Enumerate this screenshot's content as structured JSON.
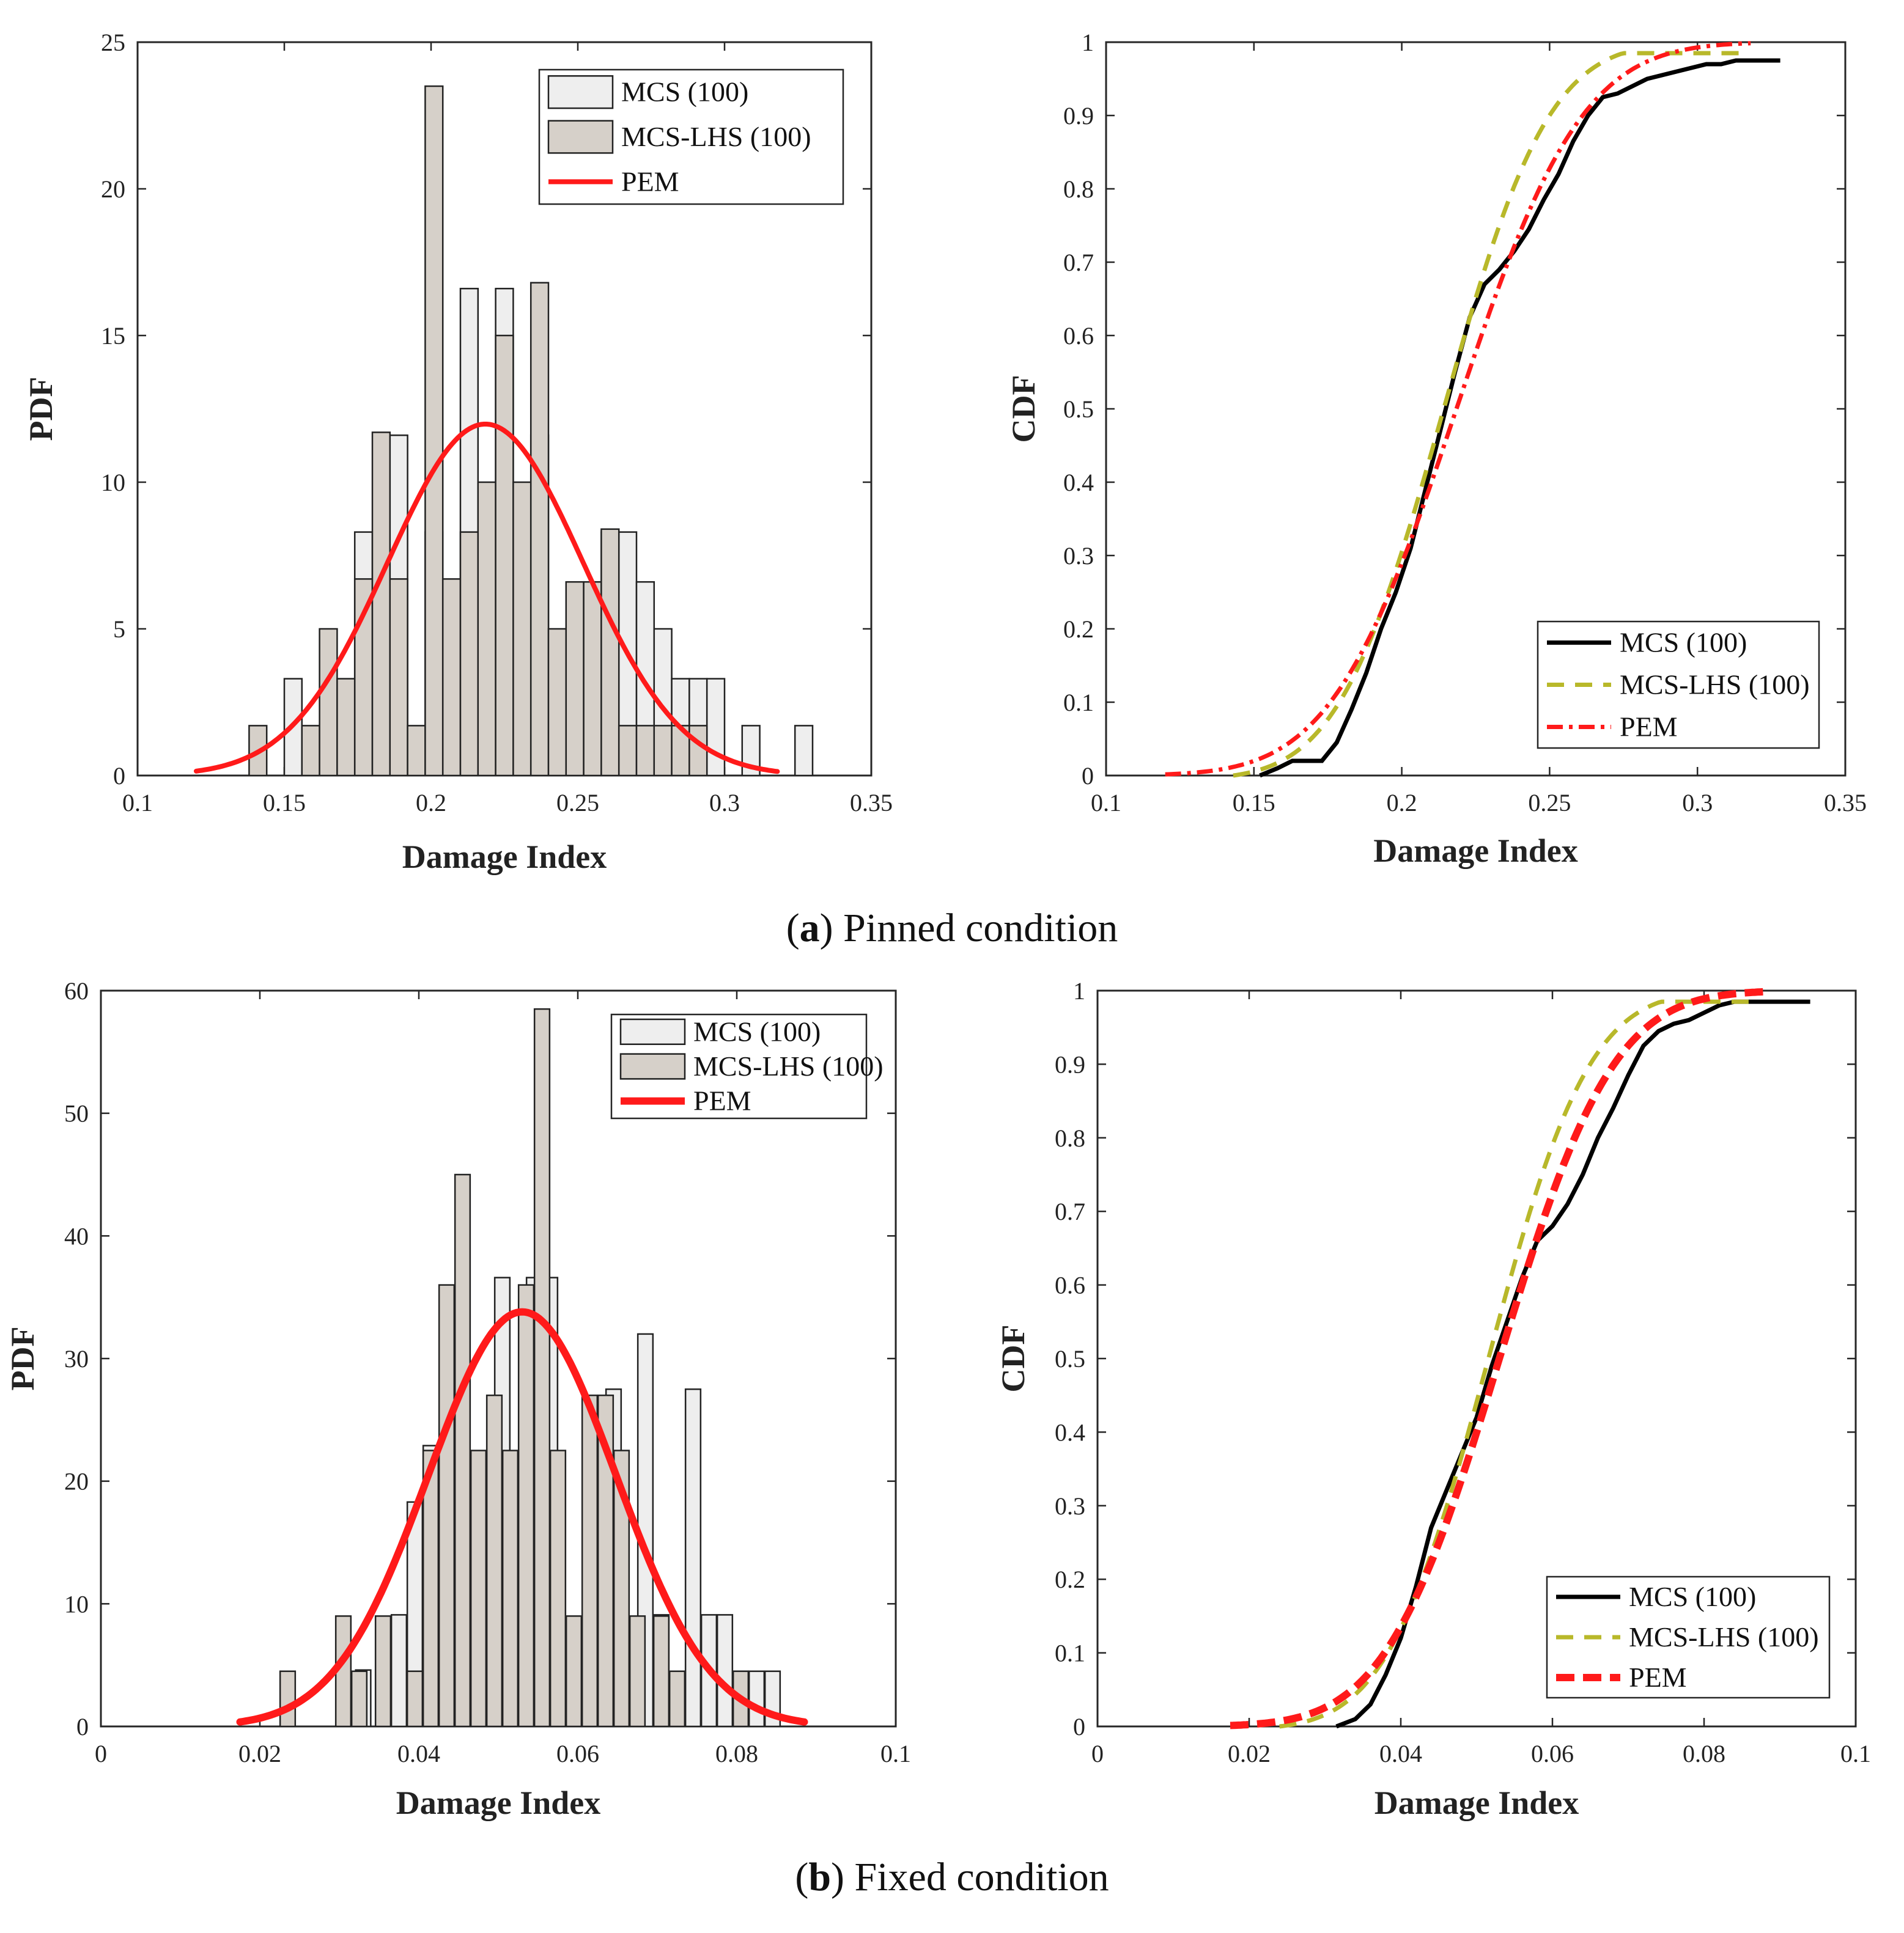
{
  "captions": {
    "a": {
      "letter": "a",
      "text": "Pinned condition"
    },
    "b": {
      "letter": "b",
      "text": "Fixed condition"
    }
  },
  "colors": {
    "mcs_hist_fill": "#eeeeee",
    "lhs_hist_fill": "#d6d0c9",
    "pem": "#ff1a1a",
    "mcs_line": "#000000",
    "lhs_line": "#b8b82a"
  },
  "chart_data": [
    {
      "id": "a-pdf",
      "type": "bar",
      "subtype": "histogram",
      "xlabel": "Damage Index",
      "ylabel": "PDF",
      "xlim": [
        0.1,
        0.35
      ],
      "ylim": [
        0,
        25
      ],
      "xticks": [
        0.1,
        0.15,
        0.2,
        0.25,
        0.3,
        0.35
      ],
      "xtick_labels": [
        "0.1",
        "0.15",
        "0.2",
        "0.25",
        "0.3",
        "0.35"
      ],
      "yticks": [
        0,
        5,
        10,
        15,
        20,
        25
      ],
      "ytick_labels": [
        "0",
        "5",
        "10",
        "15",
        "20",
        "25"
      ],
      "legend": [
        "MCS (100)",
        "MCS-LHS (100)",
        "PEM"
      ],
      "legend_position": "top-right",
      "series": [
        {
          "name": "MCS (100)",
          "bin_width": 0.006,
          "x": [
            0.153,
            0.177,
            0.189,
            0.201,
            0.213,
            0.225,
            0.237,
            0.261,
            0.267,
            0.273,
            0.279,
            0.285,
            0.291,
            0.297,
            0.309,
            0.327
          ],
          "values": [
            3.3,
            8.3,
            11.6,
            8.3,
            16.6,
            16.6,
            11.6,
            8.3,
            8.3,
            6.6,
            5.0,
            3.3,
            3.3,
            3.3,
            1.7,
            1.7
          ]
        },
        {
          "name": "MCS-LHS (100)",
          "bin_width": 0.006,
          "x": [
            0.141,
            0.159,
            0.165,
            0.171,
            0.177,
            0.183,
            0.189,
            0.195,
            0.201,
            0.207,
            0.213,
            0.219,
            0.225,
            0.231,
            0.237,
            0.243,
            0.249,
            0.255,
            0.261,
            0.267,
            0.273,
            0.279,
            0.285,
            0.291
          ],
          "values": [
            1.7,
            1.7,
            5.0,
            3.3,
            6.7,
            11.7,
            6.7,
            1.7,
            23.5,
            6.7,
            8.3,
            10.0,
            15.0,
            10.0,
            16.8,
            5.0,
            6.6,
            6.6,
            8.4,
            1.7,
            1.7,
            1.7,
            1.7,
            1.7
          ]
        },
        {
          "name": "PEM",
          "type": "line",
          "dist": "normal",
          "mean": 0.2185,
          "std": 0.0333,
          "x_range": [
            0.12,
            0.318
          ]
        }
      ]
    },
    {
      "id": "a-cdf",
      "type": "line",
      "xlabel": "Damage Index",
      "ylabel": "CDF",
      "xlim": [
        0.1,
        0.35
      ],
      "ylim": [
        0,
        1
      ],
      "xticks": [
        0.1,
        0.15,
        0.2,
        0.25,
        0.3,
        0.35
      ],
      "xtick_labels": [
        "0.1",
        "0.15",
        "0.2",
        "0.25",
        "0.3",
        "0.35"
      ],
      "yticks": [
        0,
        0.1,
        0.2,
        0.3,
        0.4,
        0.5,
        0.6,
        0.7,
        0.8,
        0.9,
        1
      ],
      "ytick_labels": [
        "0",
        "0.1",
        "0.2",
        "0.3",
        "0.4",
        "0.5",
        "0.6",
        "0.7",
        "0.8",
        "0.9",
        "1"
      ],
      "legend": [
        "MCS (100)",
        "MCS-LHS (100)",
        "PEM"
      ],
      "legend_position": "bottom-right",
      "series": [
        {
          "name": "MCS (100)",
          "style": "solid",
          "x": [
            0.152,
            0.158,
            0.163,
            0.168,
            0.173,
            0.178,
            0.183,
            0.188,
            0.193,
            0.198,
            0.203,
            0.208,
            0.213,
            0.218,
            0.223,
            0.228,
            0.233,
            0.238,
            0.243,
            0.248,
            0.253,
            0.258,
            0.263,
            0.268,
            0.273,
            0.278,
            0.283,
            0.288,
            0.293,
            0.298,
            0.303,
            0.308,
            0.313,
            0.318,
            0.323,
            0.328
          ],
          "values": [
            0.0,
            0.01,
            0.02,
            0.02,
            0.02,
            0.045,
            0.09,
            0.14,
            0.2,
            0.25,
            0.31,
            0.39,
            0.47,
            0.55,
            0.625,
            0.67,
            0.69,
            0.715,
            0.745,
            0.785,
            0.82,
            0.865,
            0.9,
            0.925,
            0.93,
            0.94,
            0.95,
            0.955,
            0.96,
            0.965,
            0.97,
            0.97,
            0.975,
            0.975,
            0.975,
            0.975
          ]
        },
        {
          "name": "MCS-LHS (100)",
          "style": "dashed",
          "dist": "normal",
          "mean": 0.214,
          "std": 0.028,
          "x_range": [
            0.143,
            0.317
          ],
          "cap": 0.985
        },
        {
          "name": "PEM",
          "style": "dash-dot",
          "dist": "normal",
          "mean": 0.2185,
          "std": 0.0333,
          "x_range": [
            0.12,
            0.318
          ]
        }
      ]
    },
    {
      "id": "b-pdf",
      "type": "bar",
      "subtype": "histogram",
      "xlabel": "Damage Index",
      "ylabel": "PDF",
      "xlim": [
        0,
        0.1
      ],
      "ylim": [
        0,
        60
      ],
      "xticks": [
        0,
        0.02,
        0.04,
        0.06,
        0.08,
        0.1
      ],
      "xtick_labels": [
        "0",
        "0.02",
        "0.04",
        "0.06",
        "0.08",
        "0.1"
      ],
      "yticks": [
        0,
        10,
        20,
        30,
        40,
        50,
        60
      ],
      "ytick_labels": [
        "0",
        "10",
        "20",
        "30",
        "40",
        "50",
        "60"
      ],
      "legend": [
        "MCS (100)",
        "MCS-LHS (100)",
        "PEM"
      ],
      "legend_position": "top-right",
      "series": [
        {
          "name": "MCS (100)",
          "bin_width": 0.0019,
          "x": [
            0.033,
            0.0375,
            0.0395,
            0.0415,
            0.0435,
            0.0505,
            0.0545,
            0.0565,
            0.0645,
            0.0685,
            0.0705,
            0.0745,
            0.0765,
            0.0785,
            0.0805,
            0.0825,
            0.0845
          ],
          "values": [
            4.6,
            9.1,
            18.3,
            22.9,
            22.9,
            36.6,
            36.6,
            36.6,
            27.5,
            32.0,
            9.1,
            27.5,
            9.1,
            9.1,
            4.5,
            4.5,
            4.5
          ]
        },
        {
          "name": "MCS-LHS (100)",
          "bin_width": 0.0019,
          "x": [
            0.0235,
            0.0305,
            0.0325,
            0.0355,
            0.0395,
            0.0415,
            0.0435,
            0.0455,
            0.0475,
            0.0495,
            0.0515,
            0.0535,
            0.0555,
            0.0575,
            0.0595,
            0.0615,
            0.0635,
            0.0655,
            0.0675,
            0.0705,
            0.0725,
            0.0805
          ],
          "values": [
            4.5,
            9.0,
            4.5,
            9.0,
            4.5,
            22.5,
            36.0,
            45.0,
            22.5,
            27.0,
            22.5,
            36.0,
            58.5,
            22.5,
            9.0,
            27.0,
            27.0,
            22.5,
            9.0,
            9.0,
            4.5,
            4.5
          ]
        },
        {
          "name": "PEM",
          "type": "line",
          "dist": "normal",
          "mean": 0.053,
          "std": 0.0118,
          "x_range": [
            0.0175,
            0.0885
          ]
        }
      ]
    },
    {
      "id": "b-cdf",
      "type": "line",
      "xlabel": "Damage Index",
      "ylabel": "CDF",
      "xlim": [
        0,
        0.1
      ],
      "ylim": [
        0,
        1
      ],
      "xticks": [
        0,
        0.02,
        0.04,
        0.06,
        0.08,
        0.1
      ],
      "xtick_labels": [
        "0",
        "0.02",
        "0.04",
        "0.06",
        "0.08",
        "0.1"
      ],
      "yticks": [
        0,
        0.1,
        0.2,
        0.3,
        0.4,
        0.5,
        0.6,
        0.7,
        0.8,
        0.9,
        1
      ],
      "ytick_labels": [
        "0",
        "0.1",
        "0.2",
        "0.3",
        "0.4",
        "0.5",
        "0.6",
        "0.7",
        "0.8",
        "0.9",
        "1"
      ],
      "legend": [
        "MCS (100)",
        "MCS-LHS (100)",
        "PEM"
      ],
      "legend_position": "bottom-right",
      "series": [
        {
          "name": "MCS (100)",
          "style": "solid",
          "x": [
            0.0315,
            0.034,
            0.036,
            0.038,
            0.04,
            0.042,
            0.044,
            0.046,
            0.048,
            0.05,
            0.052,
            0.054,
            0.056,
            0.058,
            0.06,
            0.062,
            0.064,
            0.066,
            0.068,
            0.07,
            0.072,
            0.074,
            0.076,
            0.078,
            0.08,
            0.082,
            0.084,
            0.086,
            0.088,
            0.09,
            0.092,
            0.094
          ],
          "values": [
            0.0,
            0.01,
            0.03,
            0.07,
            0.12,
            0.19,
            0.27,
            0.32,
            0.37,
            0.42,
            0.49,
            0.55,
            0.61,
            0.66,
            0.68,
            0.71,
            0.75,
            0.8,
            0.84,
            0.885,
            0.925,
            0.945,
            0.955,
            0.96,
            0.97,
            0.98,
            0.985,
            0.985,
            0.985,
            0.985,
            0.985,
            0.985
          ]
        },
        {
          "name": "MCS-LHS (100)",
          "style": "dashed",
          "dist": "normal",
          "mean": 0.0515,
          "std": 0.0105,
          "x_range": [
            0.024,
            0.086
          ],
          "cap": 0.985
        },
        {
          "name": "PEM",
          "style": "dash",
          "dist": "normal",
          "mean": 0.053,
          "std": 0.0118,
          "x_range": [
            0.0175,
            0.0885
          ]
        }
      ]
    }
  ]
}
